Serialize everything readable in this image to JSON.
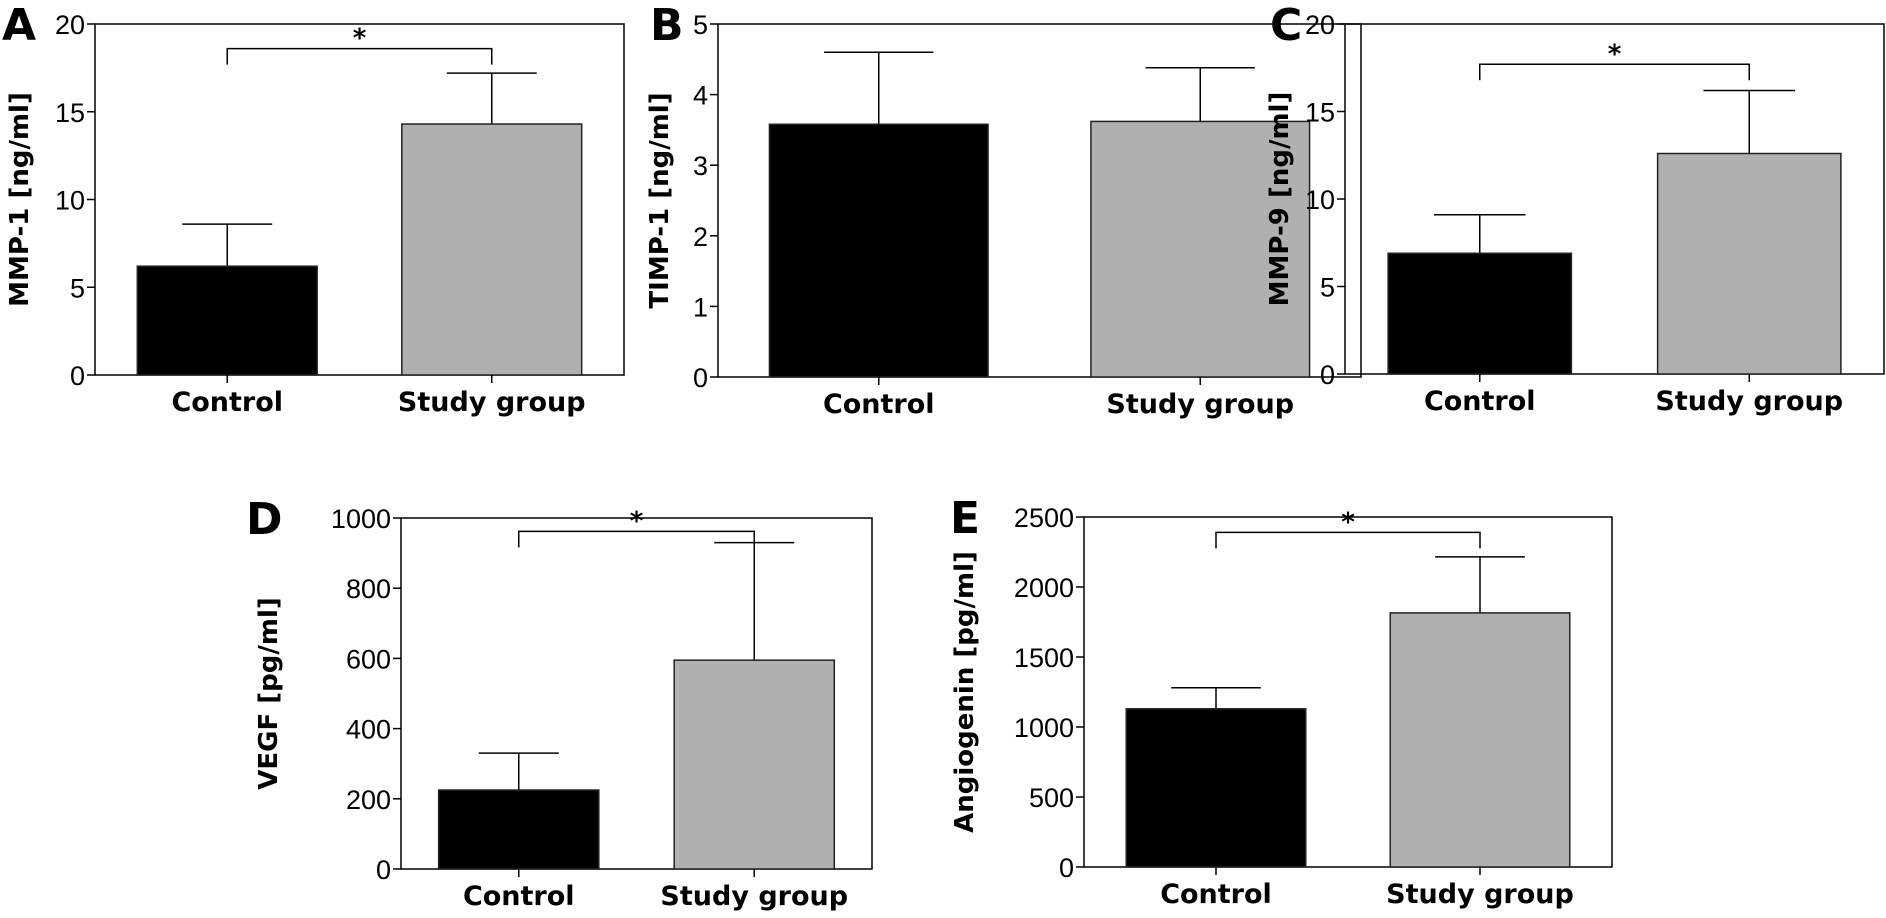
{
  "colors": {
    "control": "#000000",
    "study": "#b0b0b0",
    "axis": "#000000"
  },
  "chart_data": [
    {
      "type": "bar",
      "panel": "A",
      "title": "",
      "xlabel": "",
      "ylabel": "MMP-1 [ng/ml]",
      "categories": [
        "Control",
        "Study group"
      ],
      "values": [
        6.2,
        14.3
      ],
      "error_upper": [
        8.6,
        17.2
      ],
      "ylim": [
        0,
        20
      ],
      "yticks": [
        0,
        5,
        10,
        15,
        20
      ],
      "significance": {
        "pair": [
          0,
          1
        ],
        "label": "*",
        "level": 18.6
      },
      "grid": false
    },
    {
      "type": "bar",
      "panel": "B",
      "title": "",
      "xlabel": "",
      "ylabel": "TIMP-1 [ng/ml]",
      "categories": [
        "Control",
        "Study group"
      ],
      "values": [
        3.58,
        3.62
      ],
      "error_upper": [
        4.6,
        4.38
      ],
      "ylim": [
        0,
        5
      ],
      "yticks": [
        0,
        1,
        2,
        3,
        4,
        5
      ],
      "significance": null,
      "grid": false
    },
    {
      "type": "bar",
      "panel": "C",
      "title": "",
      "xlabel": "",
      "ylabel": "MMP-9 [ng/ml]",
      "categories": [
        "Control",
        "Study group"
      ],
      "values": [
        6.9,
        12.6
      ],
      "error_upper": [
        9.1,
        16.2
      ],
      "ylim": [
        0,
        20
      ],
      "yticks": [
        0,
        5,
        10,
        15,
        20
      ],
      "significance": {
        "pair": [
          0,
          1
        ],
        "label": "*",
        "level": 17.7
      },
      "grid": false
    },
    {
      "type": "bar",
      "panel": "D",
      "title": "",
      "xlabel": "",
      "ylabel": "VEGF [pg/ml]",
      "categories": [
        "Control",
        "Study group"
      ],
      "values": [
        225,
        595
      ],
      "error_upper": [
        330,
        930
      ],
      "ylim": [
        0,
        1000
      ],
      "yticks": [
        0,
        200,
        400,
        600,
        800,
        1000
      ],
      "significance": {
        "pair": [
          0,
          1
        ],
        "label": "*",
        "level": 962
      },
      "grid": false
    },
    {
      "type": "bar",
      "panel": "E",
      "title": "",
      "xlabel": "",
      "ylabel": "Angiogenin [pg/ml]",
      "categories": [
        "Control",
        "Study group"
      ],
      "values": [
        1130,
        1815
      ],
      "error_upper": [
        1280,
        2215
      ],
      "ylim": [
        0,
        2500
      ],
      "yticks": [
        0,
        500,
        1000,
        1500,
        2000,
        2500
      ],
      "significance": {
        "pair": [
          0,
          1
        ],
        "label": "*",
        "level": 2390
      },
      "grid": false
    }
  ]
}
